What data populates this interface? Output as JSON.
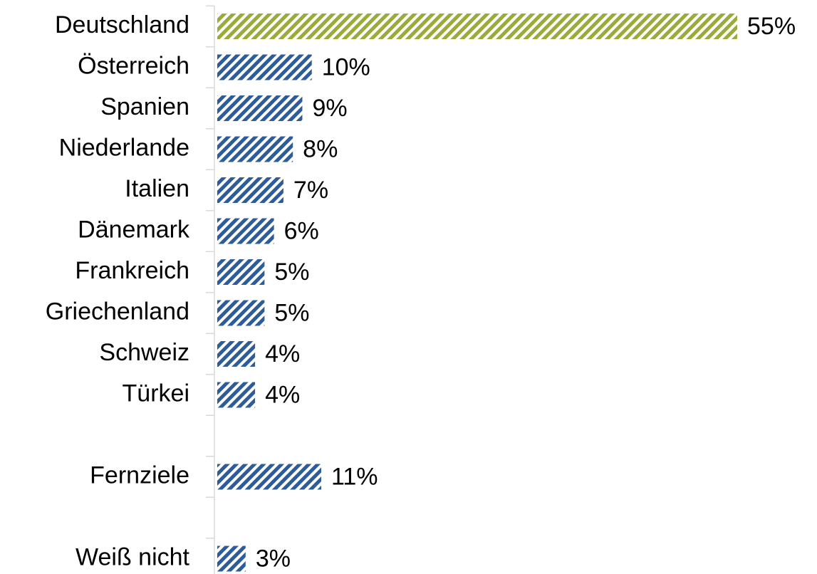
{
  "chart_data": {
    "type": "bar",
    "orientation": "horizontal",
    "categories": [
      "Deutschland",
      "Österreich",
      "Spanien",
      "Niederlande",
      "Italien",
      "Dänemark",
      "Frankreich",
      "Griechenland",
      "Schweiz",
      "Türkei",
      null,
      "Fernziele",
      null,
      "Weiß nicht"
    ],
    "values": [
      55,
      10,
      9,
      8,
      7,
      6,
      5,
      5,
      4,
      4,
      null,
      11,
      null,
      3
    ],
    "value_labels": [
      "55%",
      "10%",
      "9%",
      "8%",
      "7%",
      "6%",
      "5%",
      "5%",
      "4%",
      "4%",
      null,
      "11%",
      null,
      "3%"
    ],
    "colors": [
      "#9aab3a",
      "#2e5c99",
      "#2e5c99",
      "#2e5c99",
      "#2e5c99",
      "#2e5c99",
      "#2e5c99",
      "#2e5c99",
      "#2e5c99",
      "#2e5c99",
      null,
      "#2e5c99",
      null,
      "#2e5c99"
    ],
    "pattern": "hatched"
  }
}
